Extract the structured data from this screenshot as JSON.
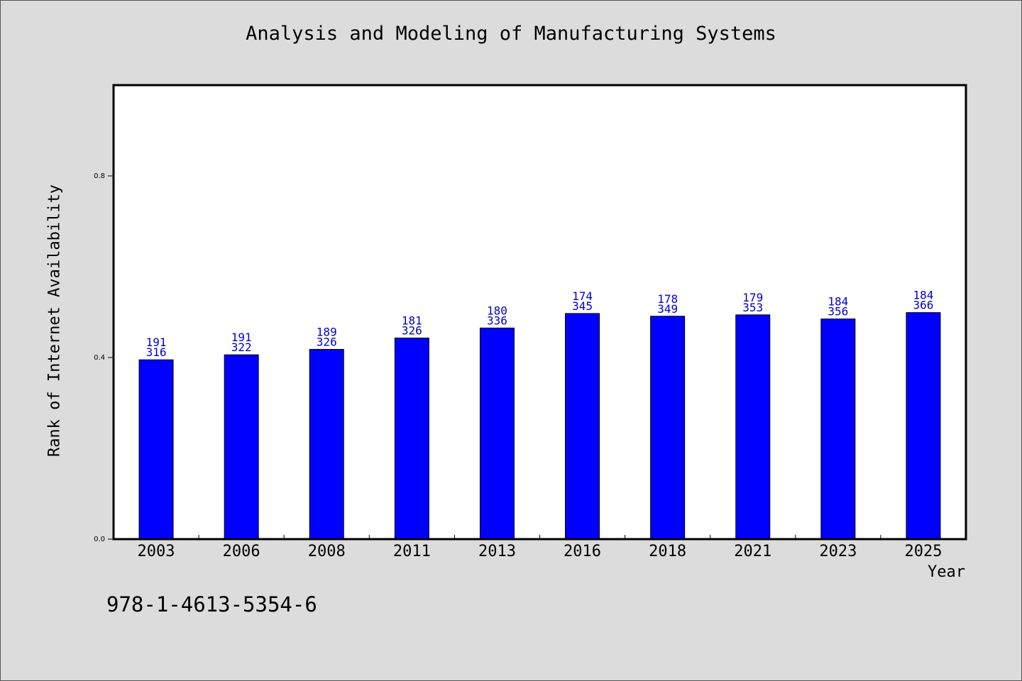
{
  "chart_data": {
    "type": "bar",
    "title": "Analysis and Modeling of Manufacturing Systems",
    "xlabel": "Year",
    "ylabel": "Rank of Internet Availability",
    "categories": [
      "2003",
      "2006",
      "2008",
      "2011",
      "2013",
      "2016",
      "2018",
      "2021",
      "2023",
      "2025"
    ],
    "values": [
      0.395,
      0.406,
      0.418,
      0.443,
      0.465,
      0.497,
      0.491,
      0.494,
      0.485,
      0.499
    ],
    "label_top": [
      "191",
      "191",
      "189",
      "181",
      "180",
      "174",
      "178",
      "179",
      "184",
      "184"
    ],
    "label_bottom": [
      "316",
      "322",
      "326",
      "326",
      "336",
      "345",
      "349",
      "353",
      "356",
      "366"
    ],
    "yticks": [
      "0.0",
      "0.4",
      "0.8"
    ],
    "ylim": [
      0,
      1.0
    ],
    "grid": false,
    "bar_color": "#0000ff",
    "label_color": "#0000cc"
  },
  "footer": {
    "isbn": "978-1-4613-5354-6"
  }
}
